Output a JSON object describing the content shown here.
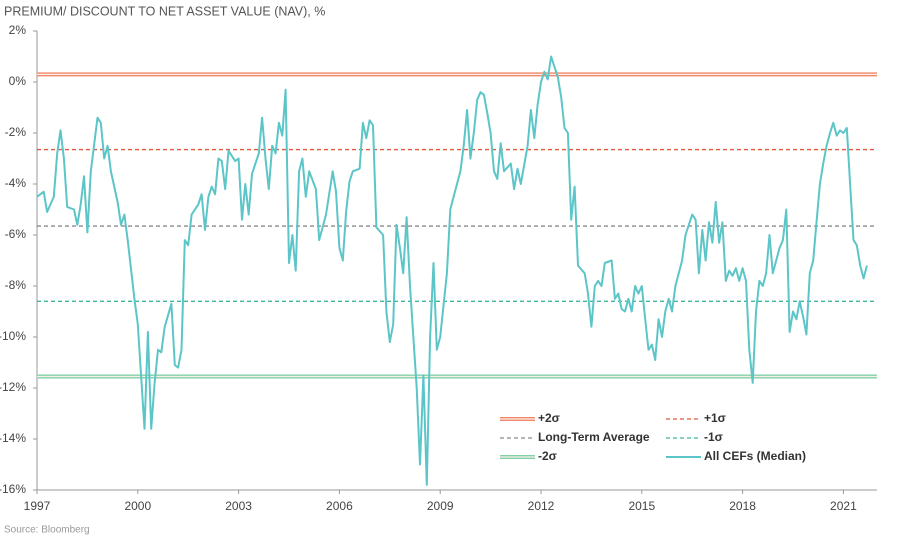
{
  "chart_data": {
    "type": "line",
    "title": "PREMIUM/ DISCOUNT TO NET ASSET VALUE (NAV), %",
    "source": "Source: Bloomberg",
    "xlim": [
      1997,
      2022
    ],
    "xticks": [
      1997,
      2000,
      2003,
      2006,
      2009,
      2012,
      2015,
      2018,
      2021
    ],
    "ylim": [
      -16,
      2
    ],
    "yticks": [
      {
        "value": 2,
        "label": "2%"
      },
      {
        "value": 0,
        "label": "0%"
      },
      {
        "value": -2,
        "label": "-2%"
      },
      {
        "value": -4,
        "label": "-4%"
      },
      {
        "value": -6,
        "label": "-6%"
      },
      {
        "value": -8,
        "label": "-8%"
      },
      {
        "value": -10,
        "label": "-10%"
      },
      {
        "value": -12,
        "label": "-12%"
      },
      {
        "value": -14,
        "label": "-14%"
      },
      {
        "value": -16,
        "label": "-16%"
      }
    ],
    "grid": false,
    "reference_lines": [
      {
        "name": "+2σ",
        "value": 0.3,
        "color": "#f0896b",
        "style": "double"
      },
      {
        "name": "+1σ",
        "value": -2.65,
        "color": "#e0583a",
        "style": "dashed"
      },
      {
        "name": "Long-Term Average",
        "value": -5.65,
        "color": "#8a8a8a",
        "style": "dashed"
      },
      {
        "name": "-1σ",
        "value": -8.6,
        "color": "#3db89a",
        "style": "dashed"
      },
      {
        "name": "-2σ",
        "value": -11.55,
        "color": "#7fd2a8",
        "style": "double"
      }
    ],
    "series": [
      {
        "name": "All CEFs (Median)",
        "color": "#5cc5c8",
        "x": [
          1997.0,
          1997.2,
          1997.3,
          1997.5,
          1997.6,
          1997.7,
          1997.8,
          1997.9,
          1998.1,
          1998.2,
          1998.3,
          1998.4,
          1998.5,
          1998.6,
          1998.8,
          1998.9,
          1999.0,
          1999.1,
          1999.2,
          1999.4,
          1999.5,
          1999.6,
          1999.7,
          1999.9,
          2000.0,
          2000.2,
          2000.3,
          2000.4,
          2000.5,
          2000.6,
          2000.7,
          2000.8,
          2001.0,
          2001.1,
          2001.2,
          2001.3,
          2001.4,
          2001.5,
          2001.6,
          2001.8,
          2001.9,
          2002.0,
          2002.1,
          2002.2,
          2002.3,
          2002.4,
          2002.5,
          2002.6,
          2002.7,
          2002.9,
          2003.0,
          2003.1,
          2003.2,
          2003.3,
          2003.4,
          2003.6,
          2003.7,
          2003.8,
          2003.9,
          2004.0,
          2004.1,
          2004.2,
          2004.3,
          2004.4,
          2004.5,
          2004.6,
          2004.7,
          2004.8,
          2004.9,
          2005.0,
          2005.1,
          2005.3,
          2005.4,
          2005.6,
          2005.8,
          2005.9,
          2006.0,
          2006.1,
          2006.2,
          2006.3,
          2006.4,
          2006.6,
          2006.7,
          2006.8,
          2006.9,
          2007.0,
          2007.1,
          2007.3,
          2007.4,
          2007.5,
          2007.6,
          2007.7,
          2007.8,
          2007.9,
          2008.0,
          2008.1,
          2008.3,
          2008.4,
          2008.5,
          2008.6,
          2008.7,
          2008.8,
          2008.9,
          2009.0,
          2009.2,
          2009.3,
          2009.4,
          2009.6,
          2009.7,
          2009.8,
          2009.9,
          2010.0,
          2010.1,
          2010.2,
          2010.3,
          2010.4,
          2010.5,
          2010.6,
          2010.7,
          2010.8,
          2010.9,
          2011.1,
          2011.2,
          2011.3,
          2011.4,
          2011.6,
          2011.7,
          2011.8,
          2011.9,
          2012.0,
          2012.1,
          2012.2,
          2012.3,
          2012.4,
          2012.5,
          2012.6,
          2012.7,
          2012.8,
          2012.9,
          2013.0,
          2013.1,
          2013.3,
          2013.4,
          2013.5,
          2013.6,
          2013.7,
          2013.8,
          2013.9,
          2014.1,
          2014.2,
          2014.3,
          2014.4,
          2014.5,
          2014.6,
          2014.7,
          2014.8,
          2014.9,
          2015.0,
          2015.1,
          2015.2,
          2015.3,
          2015.4,
          2015.5,
          2015.6,
          2015.7,
          2015.8,
          2015.9,
          2016.0,
          2016.2,
          2016.3,
          2016.5,
          2016.6,
          2016.7,
          2016.8,
          2016.9,
          2017.0,
          2017.1,
          2017.2,
          2017.3,
          2017.4,
          2017.5,
          2017.6,
          2017.7,
          2017.8,
          2017.9,
          2018.0,
          2018.1,
          2018.2,
          2018.3,
          2018.4,
          2018.5,
          2018.6,
          2018.7,
          2018.8,
          2018.9,
          2019.0,
          2019.1,
          2019.2,
          2019.3,
          2019.4,
          2019.5,
          2019.6,
          2019.7,
          2019.8,
          2019.9,
          2020.0,
          2020.1,
          2020.2,
          2020.3,
          2020.4,
          2020.5,
          2020.6,
          2020.7,
          2020.8,
          2020.9,
          2021.0,
          2021.1,
          2021.2,
          2021.3,
          2021.4,
          2021.5,
          2021.6,
          2021.7
        ],
        "values": [
          -4.5,
          -4.3,
          -5.1,
          -4.5,
          -2.8,
          -1.9,
          -3.0,
          -4.9,
          -5.0,
          -5.6,
          -4.8,
          -3.7,
          -5.9,
          -3.5,
          -1.4,
          -1.6,
          -3.0,
          -2.5,
          -3.5,
          -4.7,
          -5.6,
          -5.2,
          -6.2,
          -8.5,
          -9.5,
          -13.6,
          -9.8,
          -13.6,
          -11.8,
          -10.5,
          -10.6,
          -9.6,
          -8.7,
          -11.1,
          -11.2,
          -10.5,
          -6.2,
          -6.4,
          -5.2,
          -4.8,
          -4.4,
          -5.8,
          -4.5,
          -4.1,
          -4.4,
          -3.0,
          -3.1,
          -4.2,
          -2.7,
          -3.1,
          -3.0,
          -5.4,
          -4.0,
          -5.2,
          -3.6,
          -2.8,
          -1.4,
          -3.0,
          -4.2,
          -2.5,
          -2.8,
          -1.6,
          -2.1,
          -0.3,
          -7.1,
          -6.0,
          -7.4,
          -3.5,
          -3.0,
          -4.5,
          -3.5,
          -4.2,
          -6.2,
          -5.2,
          -3.5,
          -4.3,
          -6.5,
          -7.0,
          -5.1,
          -3.9,
          -3.5,
          -3.4,
          -1.6,
          -2.2,
          -1.5,
          -1.7,
          -5.7,
          -6.0,
          -9.0,
          -10.2,
          -9.5,
          -5.6,
          -6.5,
          -7.5,
          -5.3,
          -8.0,
          -12.0,
          -15.0,
          -11.5,
          -15.8,
          -10.0,
          -7.1,
          -10.5,
          -10.0,
          -7.5,
          -5.0,
          -4.5,
          -3.5,
          -2.5,
          -1.1,
          -3.0,
          -2.0,
          -0.7,
          -0.4,
          -0.5,
          -1.2,
          -2.0,
          -3.5,
          -3.8,
          -2.4,
          -3.5,
          -3.2,
          -4.2,
          -3.4,
          -4.0,
          -2.5,
          -1.1,
          -2.2,
          -0.9,
          0.0,
          0.4,
          0.1,
          1.0,
          0.6,
          0.2,
          -0.6,
          -1.8,
          -2.0,
          -5.4,
          -4.1,
          -7.2,
          -7.5,
          -8.3,
          -9.6,
          -8.0,
          -7.8,
          -8.0,
          -7.1,
          -7.0,
          -8.5,
          -8.3,
          -8.9,
          -9.0,
          -8.5,
          -9.0,
          -8.0,
          -8.3,
          -8.0,
          -9.3,
          -10.5,
          -10.3,
          -10.9,
          -9.3,
          -10.0,
          -9.0,
          -8.5,
          -9.0,
          -8.0,
          -7.0,
          -6.0,
          -5.2,
          -5.4,
          -7.5,
          -5.8,
          -7.0,
          -5.5,
          -6.3,
          -4.7,
          -6.3,
          -5.5,
          -7.8,
          -7.4,
          -7.6,
          -7.3,
          -7.8,
          -7.3,
          -7.8,
          -10.5,
          -11.8,
          -9.0,
          -7.8,
          -8.0,
          -7.5,
          -6.0,
          -7.5,
          -7.0,
          -6.5,
          -6.2,
          -5.0,
          -9.8,
          -9.0,
          -9.3,
          -8.6,
          -9.2,
          -9.9,
          -7.5,
          -7.0,
          -5.5,
          -4.0,
          -3.2,
          -2.5,
          -2.0,
          -1.6,
          -2.1,
          -1.9,
          -2.0,
          -1.8,
          -4.0,
          -6.2,
          -6.4,
          -7.2,
          -7.7,
          -7.2
        ]
      }
    ]
  }
}
